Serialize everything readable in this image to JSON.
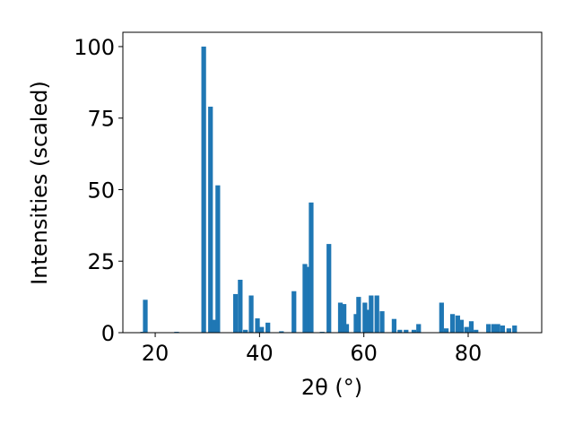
{
  "chart_data": {
    "type": "bar",
    "x_label": "2θ (°)",
    "y_label": "Intensities (scaled)",
    "color": "#1f77b4",
    "x": [
      17.6,
      18.1,
      24.1,
      29.3,
      30.6,
      31.2,
      32.0,
      35.4,
      36.3,
      37.3,
      38.4,
      39.6,
      40.4,
      41.6,
      44.2,
      46.6,
      48.7,
      49.3,
      49.9,
      52.0,
      53.3,
      55.5,
      56.2,
      56.7,
      58.5,
      59.0,
      60.2,
      60.7,
      61.4,
      62.5,
      63.5,
      65.8,
      66.9,
      68.1,
      69.6,
      70.5,
      74.9,
      75.8,
      77.0,
      78.0,
      78.7,
      79.7,
      80.6,
      81.5,
      83.9,
      84.9,
      85.7,
      86.6,
      87.8,
      88.9
    ],
    "values": [
      0.3,
      11.5,
      0.3,
      100,
      79,
      4.5,
      51.5,
      13.5,
      18.5,
      1,
      13,
      5,
      2,
      3.5,
      0.5,
      14.5,
      24,
      23,
      45.5,
      0.3,
      31,
      10.5,
      10,
      3,
      6.5,
      12.5,
      10.5,
      8,
      13,
      13,
      7.5,
      4.8,
      1,
      1,
      1,
      3,
      10.5,
      1.5,
      6.5,
      6,
      4.5,
      2,
      4,
      1,
      3,
      3,
      3,
      2.5,
      1.5,
      2.5
    ],
    "xlim": [
      13.8,
      94.1
    ],
    "ylim": [
      0,
      105
    ],
    "xticks": [
      20,
      40,
      60,
      80
    ],
    "yticks": [
      0,
      25,
      50,
      75,
      100
    ]
  }
}
